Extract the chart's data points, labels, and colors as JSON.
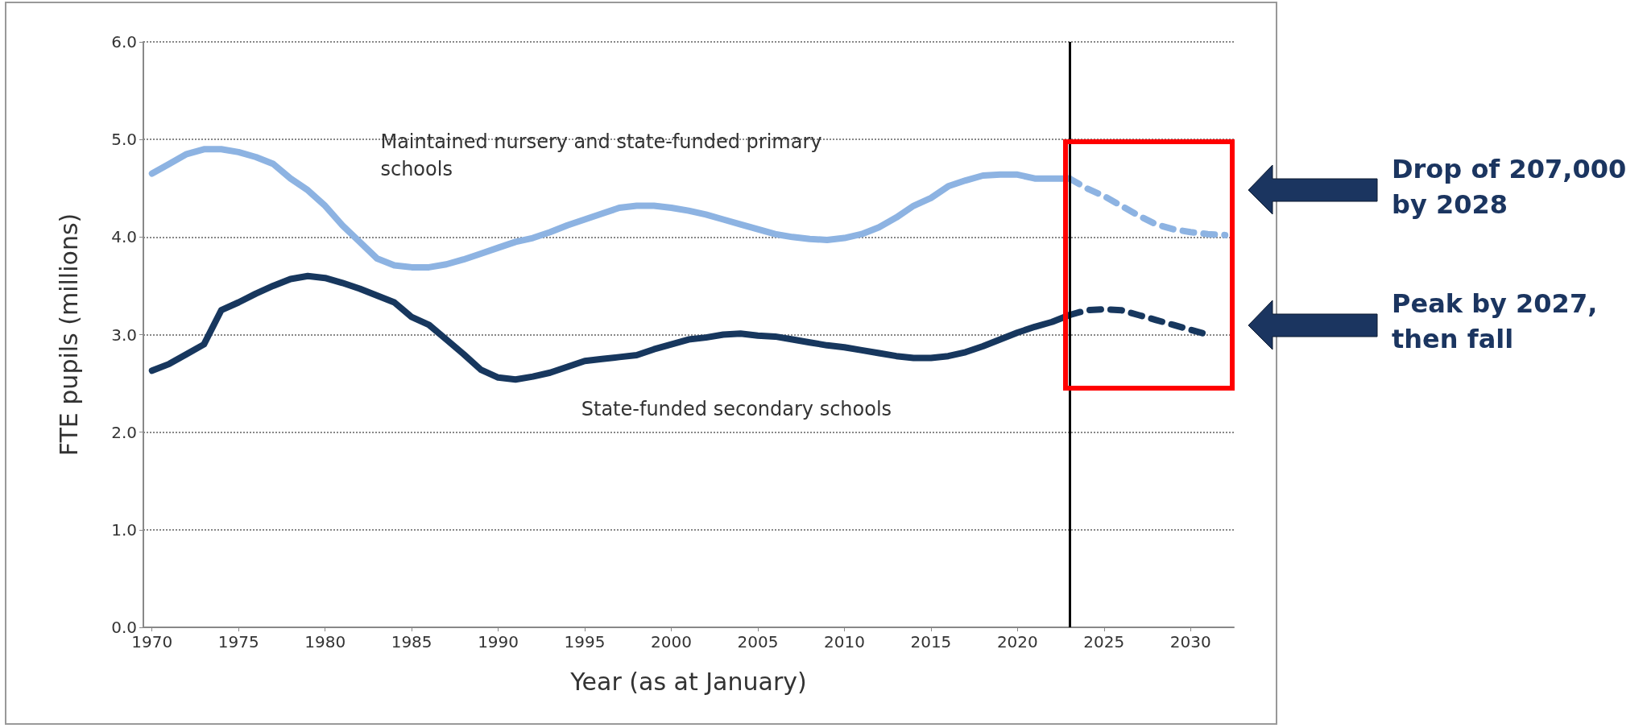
{
  "chart_data": {
    "type": "line",
    "xlabel": "Year (as at January)",
    "ylabel": "FTE pupils (millions)",
    "xlim": [
      1969.5,
      2032.5
    ],
    "xticks": [
      1970,
      1975,
      1980,
      1985,
      1990,
      1995,
      2000,
      2005,
      2010,
      2015,
      2020,
      2025,
      2030
    ],
    "ylim": [
      0,
      6
    ],
    "yticks": [
      {
        "value": 0,
        "label": "0.0"
      },
      {
        "value": 1,
        "label": "1.0"
      },
      {
        "value": 2,
        "label": "2.0"
      },
      {
        "value": 3,
        "label": "3.0"
      },
      {
        "value": 4,
        "label": "4.0"
      },
      {
        "value": 5,
        "label": "5.0"
      },
      {
        "value": 6,
        "label": "6.0"
      }
    ],
    "grid": "y",
    "legend": false,
    "marker": "none",
    "ref_lines": [
      {
        "axis": "x",
        "value": 2023,
        "color": "#000000"
      }
    ],
    "annotations": [
      "Drop of 207,000 by 2028",
      "Peak by 2027, then fall"
    ],
    "series": [
      {
        "name": "Maintained nursery and state-funded primary schools",
        "color": "#8db3e2",
        "line_style": "solid",
        "x": [
          1970,
          1971,
          1972,
          1973,
          1974,
          1975,
          1976,
          1977,
          1978,
          1979,
          1980,
          1981,
          1982,
          1983,
          1984,
          1985,
          1986,
          1987,
          1988,
          1989,
          1990,
          1991,
          1992,
          1993,
          1994,
          1995,
          1996,
          1997,
          1998,
          1999,
          2000,
          2001,
          2002,
          2003,
          2004,
          2005,
          2006,
          2007,
          2008,
          2009,
          2010,
          2011,
          2012,
          2013,
          2014,
          2015,
          2016,
          2017,
          2018,
          2019,
          2020,
          2021,
          2022,
          2023
        ],
        "values": [
          4.65,
          4.75,
          4.85,
          4.9,
          4.9,
          4.87,
          4.82,
          4.75,
          4.6,
          4.48,
          4.32,
          4.12,
          3.95,
          3.78,
          3.71,
          3.69,
          3.69,
          3.72,
          3.77,
          3.83,
          3.89,
          3.95,
          3.99,
          4.05,
          4.12,
          4.18,
          4.24,
          4.3,
          4.32,
          4.32,
          4.3,
          4.27,
          4.23,
          4.18,
          4.13,
          4.08,
          4.03,
          4.0,
          3.98,
          3.97,
          3.99,
          4.03,
          4.1,
          4.2,
          4.32,
          4.4,
          4.52,
          4.58,
          4.63,
          4.64,
          4.64,
          4.6,
          4.6,
          4.6
        ]
      },
      {
        "color": "#8db3e2",
        "line_style": "dashed",
        "x": [
          2023,
          2024,
          2025,
          2026,
          2027,
          2028,
          2029,
          2030,
          2031,
          2032
        ],
        "values": [
          4.6,
          4.5,
          4.42,
          4.32,
          4.22,
          4.13,
          4.08,
          4.05,
          4.03,
          4.02
        ]
      },
      {
        "name": "State-funded secondary schools",
        "color": "#17375e",
        "line_style": "solid",
        "x": [
          1970,
          1971,
          1972,
          1973,
          1974,
          1975,
          1976,
          1977,
          1978,
          1979,
          1980,
          1981,
          1982,
          1983,
          1984,
          1985,
          1986,
          1987,
          1988,
          1989,
          1990,
          1991,
          1992,
          1993,
          1994,
          1995,
          1996,
          1997,
          1998,
          1999,
          2000,
          2001,
          2002,
          2003,
          2004,
          2005,
          2006,
          2007,
          2008,
          2009,
          2010,
          2011,
          2012,
          2013,
          2014,
          2015,
          2016,
          2017,
          2018,
          2019,
          2020,
          2021,
          2022,
          2023
        ],
        "values": [
          2.63,
          2.7,
          2.8,
          2.9,
          3.25,
          3.33,
          3.42,
          3.5,
          3.57,
          3.6,
          3.58,
          3.53,
          3.47,
          3.4,
          3.33,
          3.18,
          3.1,
          2.95,
          2.8,
          2.64,
          2.56,
          2.54,
          2.57,
          2.61,
          2.67,
          2.73,
          2.75,
          2.77,
          2.79,
          2.85,
          2.9,
          2.95,
          2.97,
          3.0,
          3.01,
          2.99,
          2.98,
          2.95,
          2.92,
          2.89,
          2.87,
          2.84,
          2.81,
          2.78,
          2.76,
          2.76,
          2.78,
          2.82,
          2.88,
          2.95,
          3.02,
          3.08,
          3.13,
          3.2
        ]
      },
      {
        "color": "#17375e",
        "line_style": "dashed",
        "x": [
          2023,
          2024,
          2025,
          2026,
          2027,
          2028,
          2029,
          2030,
          2031
        ],
        "values": [
          3.2,
          3.25,
          3.26,
          3.25,
          3.2,
          3.15,
          3.1,
          3.05,
          3.0
        ]
      }
    ]
  }
}
